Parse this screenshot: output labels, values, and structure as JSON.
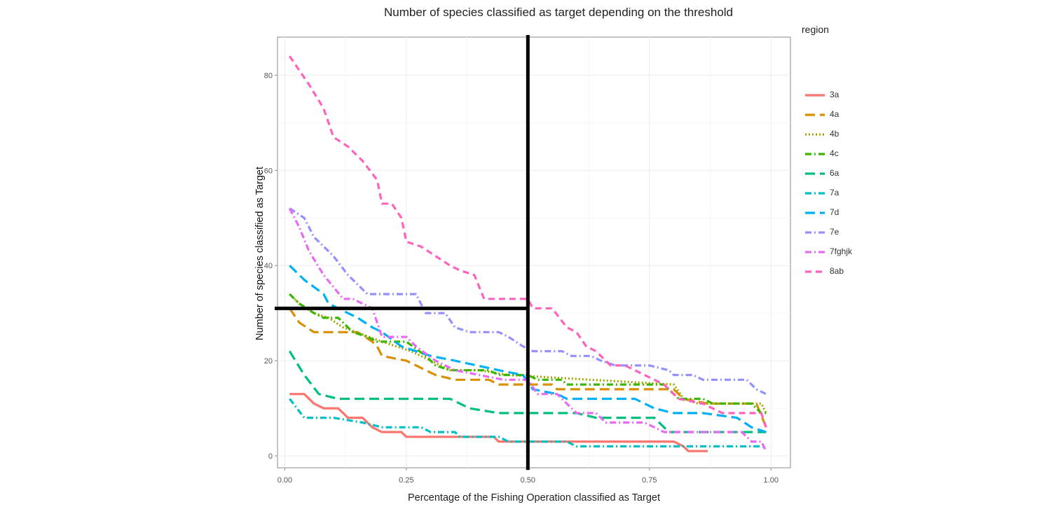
{
  "chart_data": {
    "type": "line",
    "title": "Number of species classified as target depending on the threshold",
    "xlabel": "Percentage of the Fishing Operation classified as Target",
    "ylabel": "Number of species classified as Target",
    "xlim": [
      -0.015,
      1.04
    ],
    "ylim": [
      -2.5,
      88
    ],
    "xticks": [
      0.0,
      0.25,
      0.5,
      0.75,
      1.0
    ],
    "xtick_labels": [
      "0.00",
      "0.25",
      "0.50",
      "0.75",
      "1.00"
    ],
    "yticks": [
      0,
      20,
      40,
      60,
      80
    ],
    "ytick_labels": [
      "0",
      "20",
      "40",
      "60",
      "80"
    ],
    "grid": true,
    "legend": {
      "title": "region",
      "position": "right"
    },
    "reference_lines": [
      {
        "orientation": "vertical",
        "x": 0.5
      },
      {
        "orientation": "horizontal",
        "y": 31,
        "x_end": 0.5
      }
    ],
    "series": [
      {
        "name": "3a",
        "color": "#F8766D",
        "dash": "solid",
        "points": [
          [
            0.01,
            13
          ],
          [
            0.04,
            13
          ],
          [
            0.06,
            11
          ],
          [
            0.08,
            10
          ],
          [
            0.11,
            10
          ],
          [
            0.13,
            8
          ],
          [
            0.16,
            8
          ],
          [
            0.18,
            6
          ],
          [
            0.2,
            5
          ],
          [
            0.24,
            5
          ],
          [
            0.25,
            4
          ],
          [
            0.43,
            4
          ],
          [
            0.44,
            3
          ],
          [
            0.8,
            3
          ],
          [
            0.82,
            2
          ],
          [
            0.83,
            1
          ],
          [
            0.87,
            1
          ]
        ]
      },
      {
        "name": "4a",
        "color": "#D89000",
        "dash": "longdash",
        "points": [
          [
            0.01,
            31
          ],
          [
            0.03,
            28
          ],
          [
            0.06,
            26
          ],
          [
            0.15,
            26
          ],
          [
            0.18,
            24
          ],
          [
            0.19,
            23
          ],
          [
            0.2,
            21
          ],
          [
            0.25,
            20
          ],
          [
            0.31,
            17
          ],
          [
            0.35,
            16
          ],
          [
            0.42,
            16
          ],
          [
            0.44,
            15
          ],
          [
            0.55,
            15
          ],
          [
            0.56,
            14
          ],
          [
            0.8,
            14
          ],
          [
            0.82,
            12
          ],
          [
            0.87,
            11
          ],
          [
            0.97,
            11
          ],
          [
            0.99,
            6
          ]
        ]
      },
      {
        "name": "4b",
        "color": "#A3A500",
        "dash": "dotted",
        "points": [
          [
            0.01,
            34
          ],
          [
            0.03,
            32
          ],
          [
            0.06,
            30
          ],
          [
            0.09,
            29
          ],
          [
            0.12,
            27
          ],
          [
            0.2,
            24
          ],
          [
            0.26,
            22
          ],
          [
            0.3,
            20
          ],
          [
            0.34,
            18
          ],
          [
            0.4,
            18
          ],
          [
            0.46,
            17
          ],
          [
            0.8,
            15
          ],
          [
            0.82,
            12
          ],
          [
            0.85,
            11
          ],
          [
            0.98,
            11
          ],
          [
            0.99,
            9
          ]
        ]
      },
      {
        "name": "4c",
        "color": "#39B600",
        "dash": "dotdash",
        "points": [
          [
            0.01,
            34
          ],
          [
            0.03,
            32
          ],
          [
            0.06,
            30
          ],
          [
            0.08,
            29
          ],
          [
            0.11,
            29
          ],
          [
            0.14,
            26
          ],
          [
            0.17,
            25
          ],
          [
            0.19,
            24
          ],
          [
            0.25,
            24
          ],
          [
            0.29,
            21
          ],
          [
            0.31,
            19
          ],
          [
            0.34,
            18
          ],
          [
            0.42,
            18
          ],
          [
            0.44,
            17
          ],
          [
            0.5,
            17
          ],
          [
            0.52,
            16
          ],
          [
            0.57,
            16
          ],
          [
            0.58,
            15
          ],
          [
            0.78,
            15
          ],
          [
            0.81,
            12
          ],
          [
            0.86,
            12
          ],
          [
            0.88,
            11
          ],
          [
            0.96,
            11
          ],
          [
            0.98,
            9
          ],
          [
            0.99,
            9
          ]
        ]
      },
      {
        "name": "6a",
        "color": "#00BF7D",
        "dash": "longdash",
        "points": [
          [
            0.01,
            22
          ],
          [
            0.04,
            17
          ],
          [
            0.07,
            13
          ],
          [
            0.11,
            12
          ],
          [
            0.34,
            12
          ],
          [
            0.38,
            10
          ],
          [
            0.44,
            9
          ],
          [
            0.6,
            9
          ],
          [
            0.64,
            8
          ],
          [
            0.76,
            8
          ],
          [
            0.79,
            5
          ],
          [
            0.99,
            5
          ]
        ]
      },
      {
        "name": "7a",
        "color": "#00BFC4",
        "dash": "dotdash",
        "points": [
          [
            0.01,
            12
          ],
          [
            0.04,
            8
          ],
          [
            0.1,
            8
          ],
          [
            0.16,
            7
          ],
          [
            0.2,
            6
          ],
          [
            0.28,
            6
          ],
          [
            0.3,
            5
          ],
          [
            0.35,
            5
          ],
          [
            0.36,
            4
          ],
          [
            0.44,
            4
          ],
          [
            0.46,
            3
          ],
          [
            0.58,
            3
          ],
          [
            0.6,
            2
          ],
          [
            0.99,
            2
          ]
        ]
      },
      {
        "name": "7d",
        "color": "#00B0F6",
        "dash": "longdash",
        "points": [
          [
            0.01,
            40
          ],
          [
            0.04,
            37
          ],
          [
            0.08,
            34
          ],
          [
            0.09,
            32
          ],
          [
            0.15,
            29
          ],
          [
            0.18,
            27
          ],
          [
            0.2,
            26
          ],
          [
            0.24,
            23
          ],
          [
            0.3,
            21
          ],
          [
            0.35,
            20
          ],
          [
            0.44,
            18
          ],
          [
            0.49,
            17
          ],
          [
            0.51,
            14
          ],
          [
            0.56,
            13
          ],
          [
            0.58,
            12
          ],
          [
            0.72,
            12
          ],
          [
            0.76,
            10
          ],
          [
            0.8,
            9
          ],
          [
            0.86,
            9
          ],
          [
            0.93,
            8
          ],
          [
            0.96,
            6
          ],
          [
            0.99,
            5
          ]
        ]
      },
      {
        "name": "7e",
        "color": "#9590FF",
        "dash": "dotdash",
        "points": [
          [
            0.01,
            52
          ],
          [
            0.04,
            50
          ],
          [
            0.06,
            46
          ],
          [
            0.1,
            42
          ],
          [
            0.13,
            38
          ],
          [
            0.17,
            34
          ],
          [
            0.27,
            34
          ],
          [
            0.29,
            30
          ],
          [
            0.33,
            30
          ],
          [
            0.35,
            27
          ],
          [
            0.38,
            26
          ],
          [
            0.44,
            26
          ],
          [
            0.46,
            25
          ],
          [
            0.49,
            23
          ],
          [
            0.51,
            22
          ],
          [
            0.57,
            22
          ],
          [
            0.59,
            21
          ],
          [
            0.63,
            21
          ],
          [
            0.65,
            20
          ],
          [
            0.68,
            19
          ],
          [
            0.75,
            19
          ],
          [
            0.79,
            18
          ],
          [
            0.8,
            17
          ],
          [
            0.84,
            17
          ],
          [
            0.86,
            16
          ],
          [
            0.95,
            16
          ],
          [
            0.97,
            14
          ],
          [
            0.99,
            13
          ]
        ]
      },
      {
        "name": "7fghjk",
        "color": "#E76BF3",
        "dash": "dotdash",
        "points": [
          [
            0.01,
            52
          ],
          [
            0.03,
            48
          ],
          [
            0.05,
            43
          ],
          [
            0.08,
            38
          ],
          [
            0.12,
            33
          ],
          [
            0.14,
            33
          ],
          [
            0.16,
            32
          ],
          [
            0.18,
            31
          ],
          [
            0.2,
            25
          ],
          [
            0.25,
            25
          ],
          [
            0.27,
            23
          ],
          [
            0.31,
            20
          ],
          [
            0.35,
            18
          ],
          [
            0.4,
            17
          ],
          [
            0.45,
            16
          ],
          [
            0.5,
            16
          ],
          [
            0.52,
            13
          ],
          [
            0.56,
            13
          ],
          [
            0.6,
            9
          ],
          [
            0.64,
            9
          ],
          [
            0.66,
            7
          ],
          [
            0.74,
            7
          ],
          [
            0.78,
            5
          ],
          [
            0.94,
            5
          ],
          [
            0.96,
            3
          ],
          [
            0.98,
            3
          ],
          [
            0.99,
            1
          ]
        ]
      },
      {
        "name": "8ab",
        "color": "#FF62BC",
        "dash": "dashed",
        "points": [
          [
            0.01,
            84
          ],
          [
            0.03,
            81
          ],
          [
            0.05,
            78
          ],
          [
            0.08,
            73
          ],
          [
            0.1,
            67
          ],
          [
            0.13,
            65
          ],
          [
            0.16,
            62
          ],
          [
            0.19,
            58
          ],
          [
            0.2,
            53
          ],
          [
            0.22,
            53
          ],
          [
            0.24,
            50
          ],
          [
            0.25,
            45
          ],
          [
            0.28,
            44
          ],
          [
            0.31,
            42
          ],
          [
            0.34,
            40
          ],
          [
            0.36,
            39
          ],
          [
            0.39,
            38
          ],
          [
            0.41,
            33
          ],
          [
            0.5,
            33
          ],
          [
            0.51,
            31
          ],
          [
            0.55,
            31
          ],
          [
            0.58,
            27
          ],
          [
            0.6,
            26
          ],
          [
            0.62,
            23
          ],
          [
            0.64,
            22
          ],
          [
            0.67,
            19
          ],
          [
            0.7,
            19
          ],
          [
            0.74,
            17
          ],
          [
            0.78,
            15
          ],
          [
            0.81,
            12
          ],
          [
            0.86,
            11
          ],
          [
            0.9,
            9
          ],
          [
            0.98,
            9
          ],
          [
            0.99,
            6
          ]
        ]
      }
    ]
  }
}
